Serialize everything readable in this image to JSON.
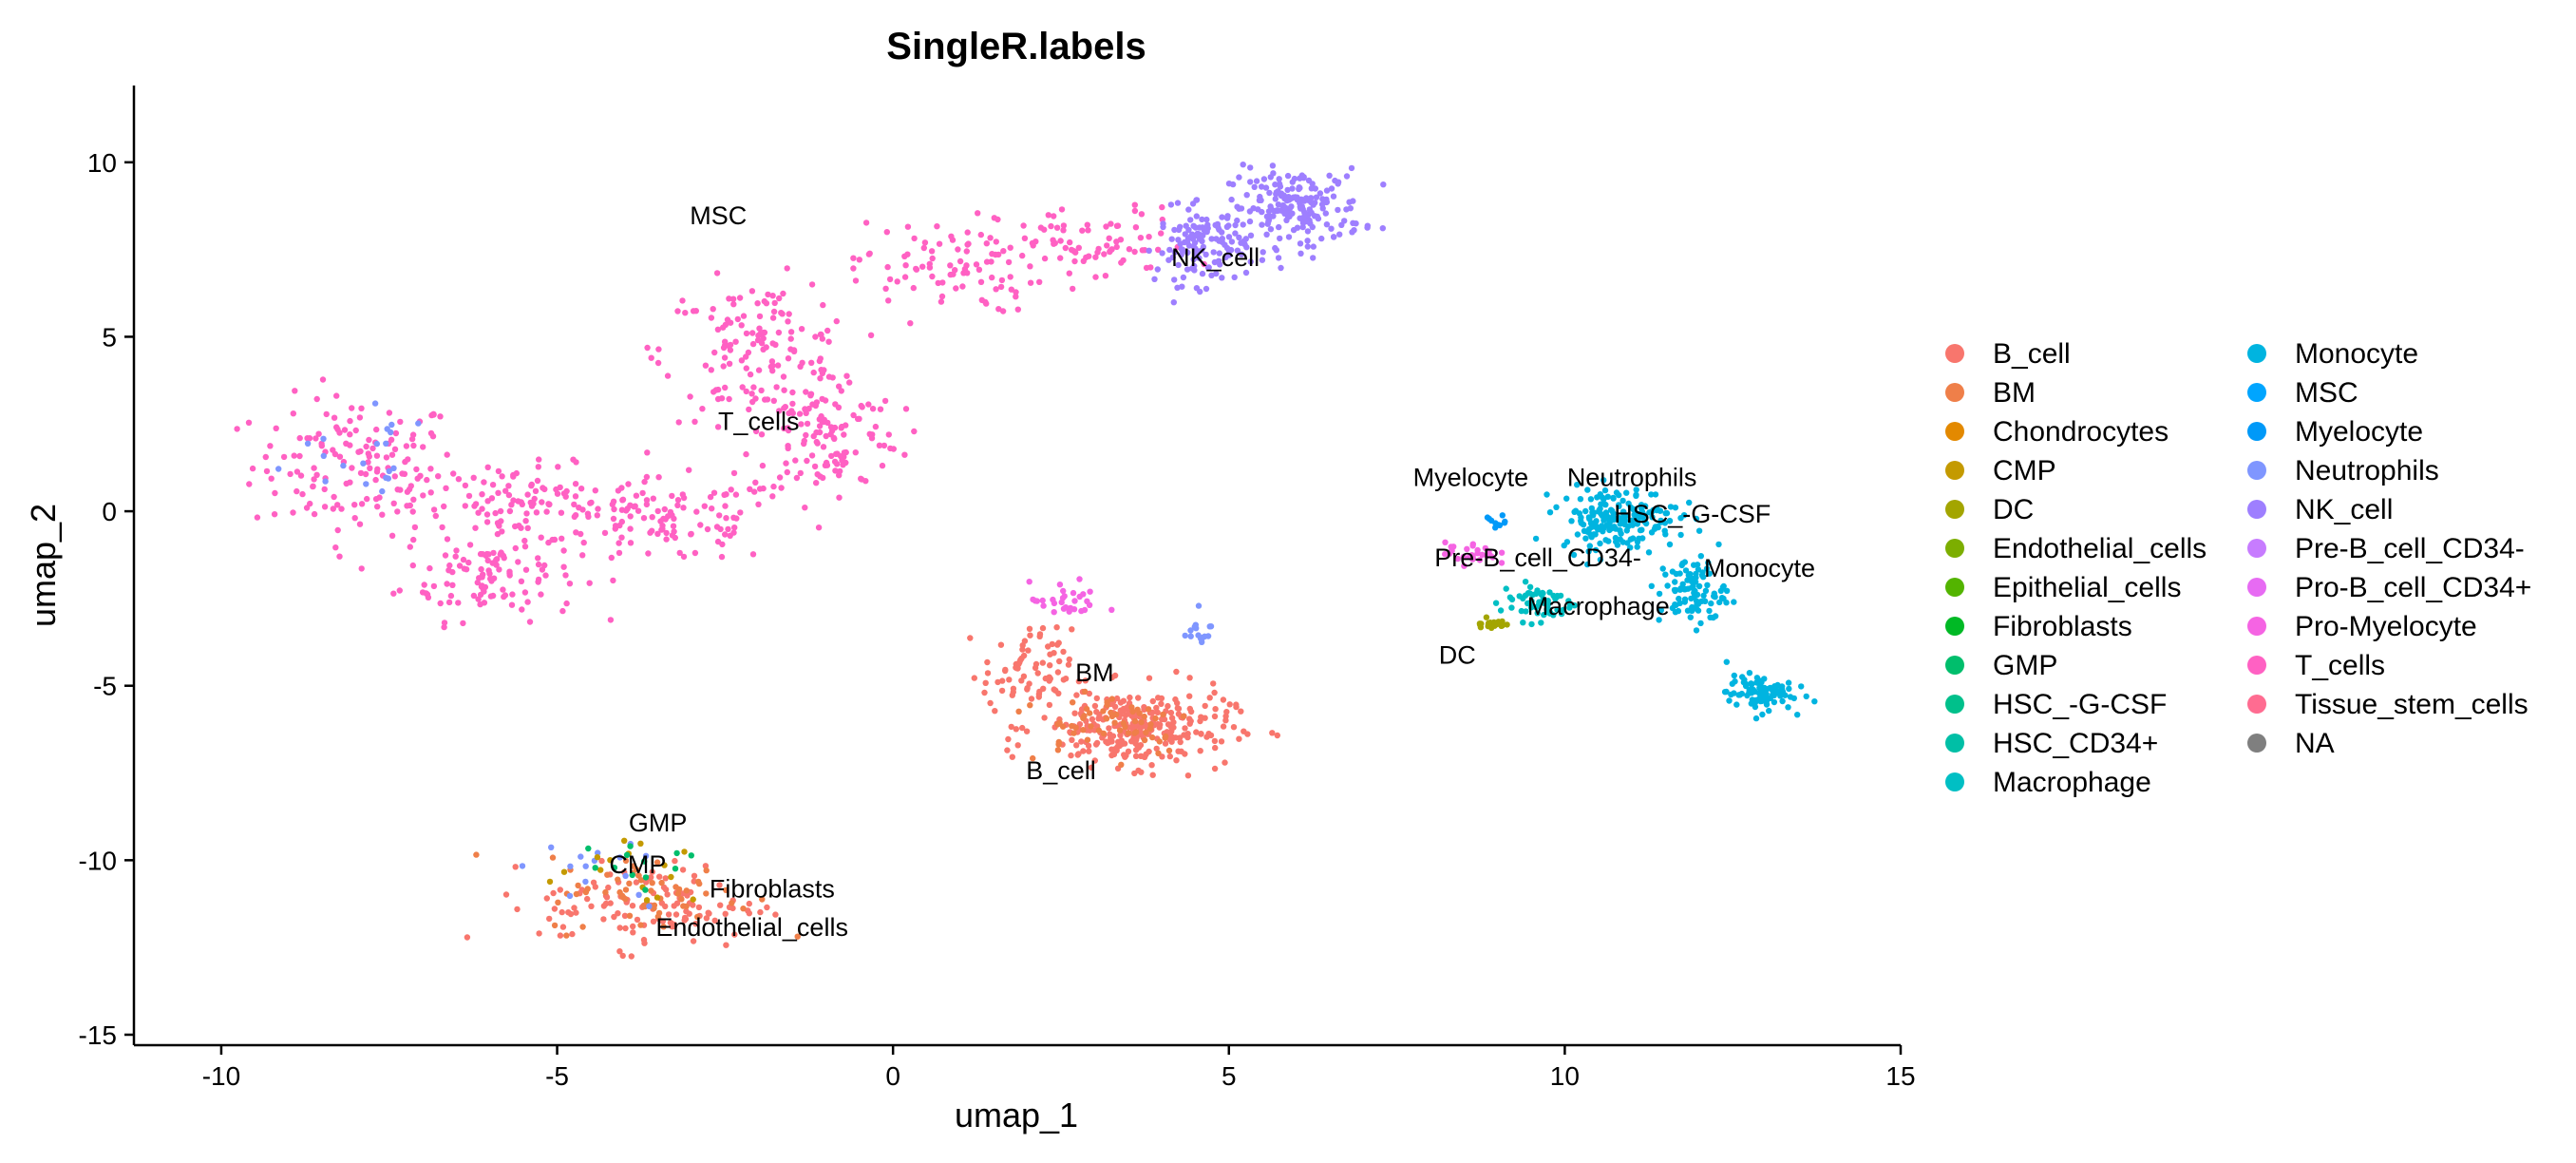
{
  "chart_data": {
    "type": "scatter",
    "title": "SingleR.labels",
    "xlabel": "umap_1",
    "ylabel": "umap_2",
    "xlim": [
      -11.3,
      15
    ],
    "ylim": [
      -15.3,
      12.2
    ],
    "xticks": [
      -10,
      -5,
      0,
      5,
      10,
      15
    ],
    "yticks": [
      -15,
      -10,
      -5,
      0,
      5,
      10
    ],
    "grid": false,
    "legend_position": "right",
    "legend": [
      {
        "name": "B_cell",
        "color": "#F8766D"
      },
      {
        "name": "BM",
        "color": "#EF7F49"
      },
      {
        "name": "Chondrocytes",
        "color": "#E38900"
      },
      {
        "name": "CMP",
        "color": "#C49A00"
      },
      {
        "name": "DC",
        "color": "#A3A500"
      },
      {
        "name": "Endothelial_cells",
        "color": "#7CAE00"
      },
      {
        "name": "Epithelial_cells",
        "color": "#53B400"
      },
      {
        "name": "Fibroblasts",
        "color": "#00B925"
      },
      {
        "name": "GMP",
        "color": "#00BE6C"
      },
      {
        "name": "HSC_-G-CSF",
        "color": "#00C08B"
      },
      {
        "name": "HSC_CD34+",
        "color": "#00BFA6"
      },
      {
        "name": "Macrophage",
        "color": "#00BFC4"
      },
      {
        "name": "Monocyte",
        "color": "#00B4E0"
      },
      {
        "name": "MSC",
        "color": "#00A5FF"
      },
      {
        "name": "Myelocyte",
        "color": "#0099F8"
      },
      {
        "name": "Neutrophils",
        "color": "#7F96FF"
      },
      {
        "name": "NK_cell",
        "color": "#9E7FFF"
      },
      {
        "name": "Pre-B_cell_CD34-",
        "color": "#C77CFF"
      },
      {
        "name": "Pro-B_cell_CD34+",
        "color": "#E76BF3"
      },
      {
        "name": "Pro-Myelocyte",
        "color": "#F564E3"
      },
      {
        "name": "T_cells",
        "color": "#FF61C3"
      },
      {
        "name": "Tissue_stem_cells",
        "color": "#FF6C91"
      },
      {
        "name": "NA",
        "color": "#7F7F7F"
      }
    ],
    "cluster_labels": [
      {
        "text": "MSC",
        "x": -2.6,
        "y": 8.5
      },
      {
        "text": "NK_cell",
        "x": 4.8,
        "y": 7.3
      },
      {
        "text": "T_cells",
        "x": -2.0,
        "y": 2.6
      },
      {
        "text": "Myelocyte",
        "x": 8.6,
        "y": 1.0
      },
      {
        "text": "Neutrophils",
        "x": 11.0,
        "y": 1.0
      },
      {
        "text": "HSC_-G-CSF",
        "x": 11.9,
        "y": -0.05
      },
      {
        "text": "Pre-B_cell_CD34-",
        "x": 9.6,
        "y": -1.3
      },
      {
        "text": "Monocyte",
        "x": 12.9,
        "y": -1.6
      },
      {
        "text": "Macrophage",
        "x": 10.5,
        "y": -2.7
      },
      {
        "text": "DC",
        "x": 8.4,
        "y": -4.1
      },
      {
        "text": "BM",
        "x": 3.0,
        "y": -4.6
      },
      {
        "text": "B_cell",
        "x": 2.5,
        "y": -7.4
      },
      {
        "text": "GMP",
        "x": -3.5,
        "y": -8.9
      },
      {
        "text": "CMP",
        "x": -3.8,
        "y": -10.1
      },
      {
        "text": "Fibroblasts",
        "x": -1.8,
        "y": -10.8
      },
      {
        "text": "Endothelial_cells",
        "x": -2.1,
        "y": -11.9
      }
    ],
    "clusters": [
      {
        "label": "T_cells",
        "color": "#FF61C3",
        "n": 900,
        "blobs": [
          {
            "cx": -8.0,
            "cy": 1.3,
            "sx": 1.4,
            "sy": 1.8,
            "w": 0.16
          },
          {
            "cx": -6.0,
            "cy": -1.8,
            "sx": 1.2,
            "sy": 1.2,
            "w": 0.12
          },
          {
            "cx": -5.5,
            "cy": 0.2,
            "sx": 1.5,
            "sy": 1.0,
            "w": 0.12
          },
          {
            "cx": -3.3,
            "cy": -0.3,
            "sx": 1.5,
            "sy": 1.1,
            "w": 0.12
          },
          {
            "cx": -2.0,
            "cy": 4.6,
            "sx": 1.3,
            "sy": 1.8,
            "w": 0.16
          },
          {
            "cx": -1.0,
            "cy": 2.2,
            "sx": 1.0,
            "sy": 1.7,
            "w": 0.14
          },
          {
            "cx": 0.8,
            "cy": 7.0,
            "sx": 1.3,
            "sy": 1.2,
            "w": 0.1
          },
          {
            "cx": 3.0,
            "cy": 7.6,
            "sx": 1.3,
            "sy": 1.0,
            "w": 0.08
          }
        ]
      },
      {
        "label": "NK_cell",
        "color": "#9E7FFF",
        "n": 320,
        "blobs": [
          {
            "cx": 6.0,
            "cy": 8.7,
            "sx": 0.9,
            "sy": 1.0,
            "w": 0.6
          },
          {
            "cx": 4.6,
            "cy": 7.6,
            "sx": 0.6,
            "sy": 1.0,
            "w": 0.4
          }
        ]
      },
      {
        "label": "B_cell",
        "color": "#F8766D",
        "n": 480,
        "blobs": [
          {
            "cx": 3.6,
            "cy": -6.2,
            "sx": 1.3,
            "sy": 1.0,
            "w": 0.6
          },
          {
            "cx": 2.0,
            "cy": -4.6,
            "sx": 0.6,
            "sy": 1.1,
            "w": 0.15
          },
          {
            "cx": -3.6,
            "cy": -11.3,
            "sx": 1.5,
            "sy": 1.1,
            "w": 0.25
          }
        ]
      },
      {
        "label": "BM",
        "color": "#EF7F49",
        "n": 120,
        "blobs": [
          {
            "cx": 3.2,
            "cy": -6.0,
            "sx": 1.2,
            "sy": 0.9,
            "w": 0.5
          },
          {
            "cx": -3.6,
            "cy": -11.0,
            "sx": 1.4,
            "sy": 1.0,
            "w": 0.5
          }
        ]
      },
      {
        "label": "Monocyte",
        "color": "#00B4E0",
        "n": 380,
        "blobs": [
          {
            "cx": 10.8,
            "cy": -0.2,
            "sx": 0.8,
            "sy": 0.8,
            "w": 0.5
          },
          {
            "cx": 11.9,
            "cy": -2.3,
            "sx": 0.45,
            "sy": 0.9,
            "w": 0.25
          },
          {
            "cx": 12.9,
            "cy": -5.2,
            "sx": 0.45,
            "sy": 0.45,
            "w": 0.25
          }
        ]
      },
      {
        "label": "Macrophage",
        "color": "#00BFC4",
        "n": 60,
        "blobs": [
          {
            "cx": 9.6,
            "cy": -2.6,
            "sx": 0.5,
            "sy": 0.5,
            "w": 1.0
          }
        ]
      },
      {
        "label": "Neutrophils",
        "color": "#7F96FF",
        "n": 50,
        "blobs": [
          {
            "cx": -8.0,
            "cy": 1.5,
            "sx": 1.2,
            "sy": 1.5,
            "w": 0.4
          },
          {
            "cx": 4.5,
            "cy": -3.4,
            "sx": 0.25,
            "sy": 0.35,
            "w": 0.3
          },
          {
            "cx": -4.5,
            "cy": -10.5,
            "sx": 1.0,
            "sy": 0.9,
            "w": 0.3
          }
        ]
      },
      {
        "label": "Pro-Myelocyte",
        "color": "#F564E3",
        "n": 60,
        "blobs": [
          {
            "cx": 2.6,
            "cy": -2.6,
            "sx": 0.5,
            "sy": 0.5,
            "w": 0.5
          },
          {
            "cx": 8.6,
            "cy": -1.2,
            "sx": 0.35,
            "sy": 0.3,
            "w": 0.5
          }
        ]
      },
      {
        "label": "DC",
        "color": "#A3A500",
        "n": 25,
        "blobs": [
          {
            "cx": 8.9,
            "cy": -3.2,
            "sx": 0.2,
            "sy": 0.2,
            "w": 1.0
          }
        ]
      },
      {
        "label": "CMP",
        "color": "#C49A00",
        "n": 15,
        "blobs": [
          {
            "cx": -3.9,
            "cy": -10.4,
            "sx": 1.0,
            "sy": 0.8,
            "w": 1.0
          }
        ]
      },
      {
        "label": "GMP",
        "color": "#00BE6C",
        "n": 12,
        "blobs": [
          {
            "cx": -3.5,
            "cy": -10.0,
            "sx": 1.0,
            "sy": 0.8,
            "w": 1.0
          }
        ]
      },
      {
        "label": "Myelocyte",
        "color": "#0099F8",
        "n": 10,
        "blobs": [
          {
            "cx": 9.0,
            "cy": -0.3,
            "sx": 0.2,
            "sy": 0.15,
            "w": 1.0
          }
        ]
      }
    ]
  }
}
